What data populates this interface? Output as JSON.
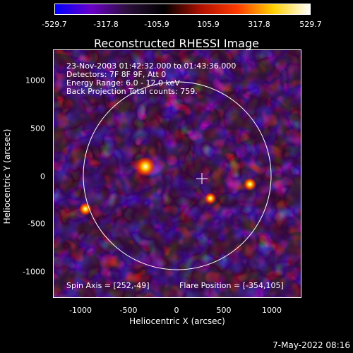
{
  "colorbar": {
    "ticks": [
      "-529.7",
      "-317.8",
      "-105.9",
      "105.9",
      "317.8",
      "529.7"
    ],
    "colors": [
      "#0000ff",
      "#6a00c8",
      "#2b0f3a",
      "#000000",
      "#b01000",
      "#ff3a00",
      "#ffd000",
      "#ffffff"
    ]
  },
  "title": "Reconstructed RHESSI Image",
  "info": {
    "line1": "23-Nov-2003 01:42:32.000 to 01:43:36.000",
    "line2": "Detectors: 7F 8F 9F, Att 0",
    "line3": "Energy Range: 6.0 - 12.0 keV",
    "line4": "Back Projection     Total counts: 759.",
    "spin_axis": "Spin Axis = [252,-49]",
    "flare_position": "Flare Position = [-354,105]"
  },
  "axes": {
    "xlabel": "Heliocentric X (arcsec)",
    "ylabel": "Heliocentric Y (arcsec)",
    "xticks": [
      "-1000",
      "-500",
      "0",
      "500",
      "1000"
    ],
    "yticks": [
      "1000",
      "500",
      "0",
      "-500",
      "-1000"
    ]
  },
  "datestamp": "7-May-2022 08:16"
}
